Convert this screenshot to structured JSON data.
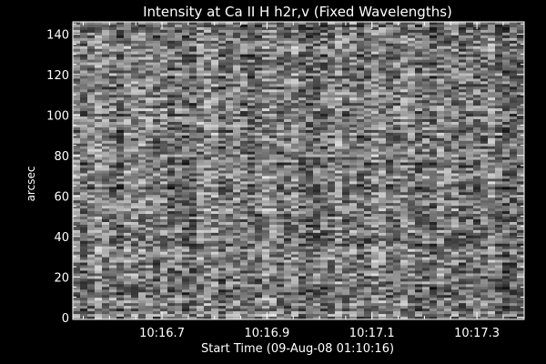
{
  "chart_data": {
    "type": "heatmap",
    "title": "Intensity at Ca II H h2r,v (Fixed Wavelengths)",
    "xlabel": "Start Time (09-Aug-08 01:10:16)",
    "ylabel": "arcsec",
    "x_ticks": [
      "10:16.7",
      "10:16.9",
      "10:17.1",
      "10:17.3"
    ],
    "x_tick_seconds": [
      16.7,
      16.9,
      17.1,
      17.3
    ],
    "xlim_seconds": [
      16.53,
      17.39
    ],
    "y_ticks": [
      "0",
      "20",
      "40",
      "60",
      "80",
      "100",
      "120",
      "140"
    ],
    "y_tick_values": [
      0,
      20,
      40,
      60,
      80,
      100,
      120,
      140
    ],
    "ylim": [
      -1,
      146
    ],
    "colormap": "grayscale",
    "background": "#000000",
    "foreground": "#ffffff"
  }
}
